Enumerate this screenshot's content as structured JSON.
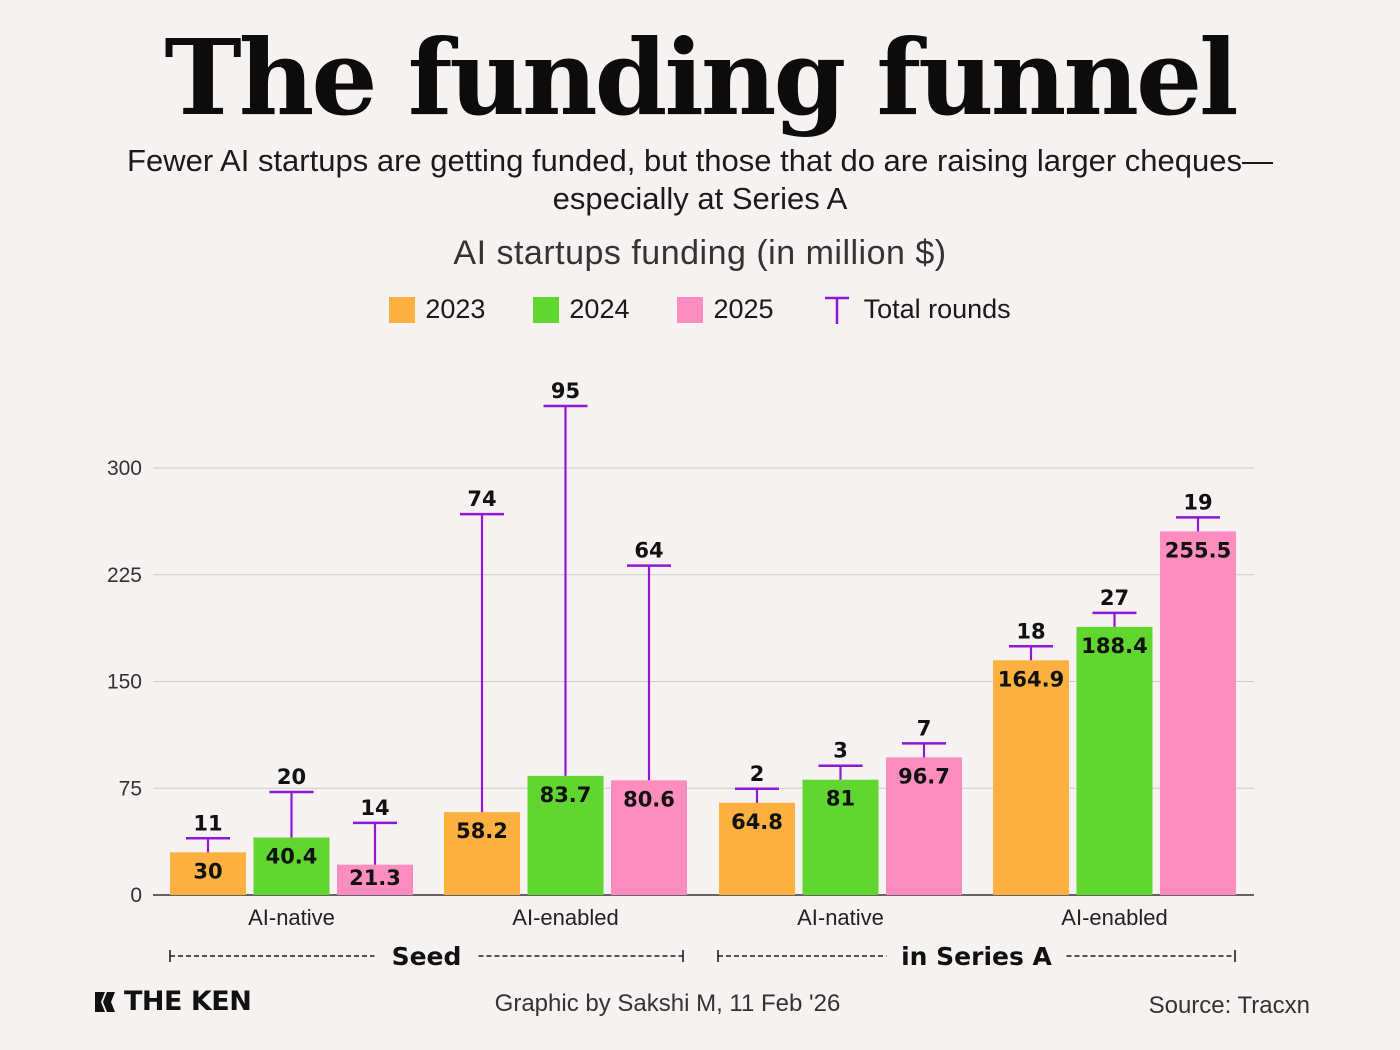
{
  "title": "The funding funnel",
  "subtitle": "Fewer AI startups are getting funded, but those that do are raising larger cheques—especially at Series A",
  "legend": {
    "items": [
      {
        "label": "2023",
        "color": "#fbb040"
      },
      {
        "label": "2024",
        "color": "#62d630"
      },
      {
        "label": "2025",
        "color": "#fe8dbf"
      }
    ],
    "rounds_label": "Total rounds",
    "rounds_color": "#8e18d6"
  },
  "footer": {
    "logo": "THE KEN",
    "credit": "Graphic by Sakshi M, 11 Feb '26",
    "source": "Source:  Tracxn"
  },
  "chart_data": {
    "type": "bar",
    "title": "AI startups funding (in million $)",
    "ylim": [
      0,
      300
    ],
    "yticks": [
      0,
      75,
      150,
      225,
      300
    ],
    "grid": true,
    "categories": [
      "AI-native",
      "AI-enabled",
      "AI-native",
      "AI-enabled"
    ],
    "groups": [
      {
        "label": "Seed",
        "categories": [
          0,
          1
        ]
      },
      {
        "label": "in Series A",
        "categories": [
          2,
          3
        ]
      }
    ],
    "series": [
      {
        "name": "2023",
        "values": [
          30,
          58.2,
          64.8,
          164.9
        ],
        "value_labels": [
          "30",
          "58.2",
          "64.8",
          "164.9"
        ],
        "rounds": [
          11,
          74,
          2,
          18
        ]
      },
      {
        "name": "2024",
        "values": [
          40.4,
          83.7,
          81,
          188.4
        ],
        "value_labels": [
          "40.4",
          "83.7",
          "81",
          "188.4"
        ],
        "rounds": [
          20,
          95,
          3,
          27
        ]
      },
      {
        "name": "2025",
        "values": [
          21.3,
          80.6,
          96.7,
          255.5
        ],
        "value_labels": [
          "21.3",
          "80.6",
          "96.7",
          "255.5"
        ],
        "rounds": [
          14,
          64,
          7,
          19
        ]
      }
    ]
  }
}
